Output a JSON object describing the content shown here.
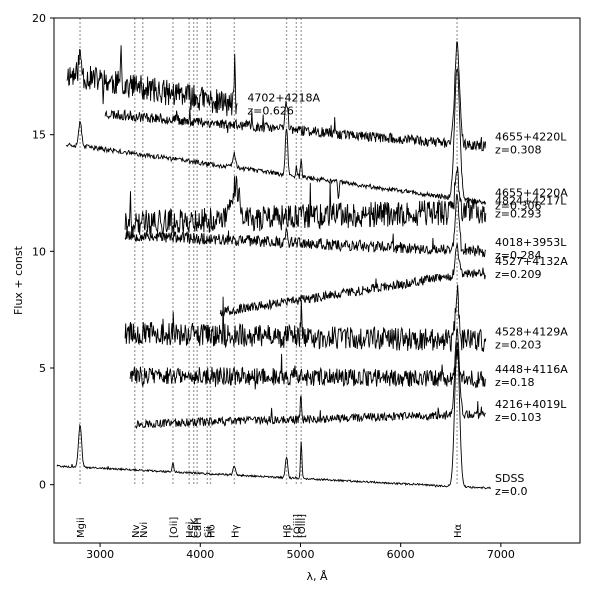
{
  "chart_data": {
    "type": "line",
    "title": "",
    "xlabel": "λ, Å",
    "ylabel": "Flux + const",
    "xlim": [
      2540,
      7790
    ],
    "ylim": [
      -2.5,
      20
    ],
    "x_ticks": [
      3000,
      4000,
      5000,
      6000,
      7000
    ],
    "y_ticks": [
      0,
      5,
      10,
      15,
      20
    ],
    "grid": false,
    "legend": "none",
    "colors": {
      "spectrum": "#000000",
      "line_marker": "#a8a8a8"
    },
    "series": [
      {
        "id": "4702+4218A",
        "name": "4702+4218A",
        "z": "z=0.626",
        "x_range": [
          2670,
          4370
        ],
        "offset": 17.6,
        "slope": -0.0008,
        "noise": 0.55,
        "seed": 11,
        "features": [
          {
            "wl": 2800,
            "amp": 0.9,
            "w": 15
          },
          {
            "wl": 3210,
            "amp": 2.2,
            "w": 4
          },
          {
            "wl": 4345,
            "amp": 2.5,
            "w": 4
          }
        ]
      },
      {
        "id": "4655+4220L",
        "name": "4655+4220L",
        "z": "z=0.308",
        "x_range": [
          3050,
          6850
        ],
        "offset": 15.9,
        "slope": -0.00037,
        "noise": 0.22,
        "seed": 23,
        "features": [
          {
            "wl": 4861,
            "amp": 1.2,
            "w": 14
          },
          {
            "wl": 6563,
            "amp": 4.3,
            "w": 24
          }
        ]
      },
      {
        "id": "4655+4220A",
        "name": "4655+4220A",
        "z": "z=0.306",
        "x_range": [
          2660,
          6850
        ],
        "offset": 14.6,
        "slope": -0.0006,
        "noise": 0.1,
        "seed": 37,
        "features": [
          {
            "wl": 2800,
            "amp": 1.0,
            "w": 15
          },
          {
            "wl": 4340,
            "amp": 0.6,
            "w": 15
          },
          {
            "wl": 4861,
            "amp": 2.0,
            "w": 12
          },
          {
            "wl": 4959,
            "amp": 0.4,
            "w": 6
          },
          {
            "wl": 5007,
            "amp": 0.8,
            "w": 6
          },
          {
            "wl": 5380,
            "amp": -0.8,
            "w": 6
          },
          {
            "wl": 6563,
            "amp": 5.6,
            "w": 26
          }
        ]
      },
      {
        "id": "4824+4217L",
        "name": "4824+4217L",
        "z": "z=0.293",
        "x_range": [
          3250,
          6850
        ],
        "offset": 11.2,
        "slope": 0.00015,
        "noise": 0.55,
        "seed": 41,
        "features": [
          {
            "wl": 4350,
            "amp": 1.5,
            "w": 40
          },
          {
            "wl": 6563,
            "amp": 1.8,
            "w": 20
          }
        ]
      },
      {
        "id": "4018+3953L",
        "name": "4018+3953L",
        "z": "z=0.284",
        "x_range": [
          3250,
          6850
        ],
        "offset": 10.7,
        "slope": -0.0002,
        "noise": 0.25,
        "seed": 53,
        "features": [
          {
            "wl": 4861,
            "amp": 0.8,
            "w": 10
          },
          {
            "wl": 6563,
            "amp": 2.5,
            "w": 18
          }
        ]
      },
      {
        "id": "4527+4132A",
        "name": "4527+4132A",
        "z": "z=0.209",
        "x_range": [
          4200,
          6850
        ],
        "offset": 7.4,
        "slope": 0.00066,
        "noise": 0.2,
        "seed": 67,
        "features": [
          {
            "wl": 6563,
            "amp": 1.2,
            "w": 18
          }
        ]
      },
      {
        "id": "4528+4129A",
        "name": "4528+4129A",
        "z": "z=0.203",
        "x_range": [
          3250,
          6850
        ],
        "offset": 6.5,
        "slope": -0.0001,
        "noise": 0.5,
        "seed": 79,
        "features": [
          {
            "wl": 5007,
            "amp": 1.2,
            "w": 6
          },
          {
            "wl": 6563,
            "amp": 2.2,
            "w": 18
          }
        ]
      },
      {
        "id": "4448+4116A",
        "name": "4448+4116A",
        "z": "z=0.18",
        "x_range": [
          3300,
          6850
        ],
        "offset": 4.7,
        "slope": -5e-05,
        "noise": 0.38,
        "seed": 83,
        "features": [
          {
            "wl": 6563,
            "amp": 0.9,
            "w": 14
          }
        ]
      },
      {
        "id": "4216+4019L",
        "name": "4216+4019L",
        "z": "z=0.103",
        "x_range": [
          3350,
          6850
        ],
        "offset": 2.6,
        "slope": 0.00012,
        "noise": 0.18,
        "seed": 97,
        "features": [
          {
            "wl": 5005,
            "amp": 1.2,
            "w": 6
          },
          {
            "wl": 6563,
            "amp": 3.6,
            "w": 22
          }
        ]
      },
      {
        "id": "SDSS",
        "name": "SDSS",
        "z": "z=0.0",
        "x_range": [
          2570,
          6900
        ],
        "offset": 0.8,
        "slope": -0.00022,
        "noise": 0.04,
        "seed": 101,
        "features": [
          {
            "wl": 2800,
            "amp": 1.8,
            "w": 15
          },
          {
            "wl": 3727,
            "amp": 0.4,
            "w": 8
          },
          {
            "wl": 4340,
            "amp": 0.4,
            "w": 12
          },
          {
            "wl": 4861,
            "amp": 0.9,
            "w": 12
          },
          {
            "wl": 5007,
            "amp": 1.6,
            "w": 7
          },
          {
            "wl": 6563,
            "amp": 6.2,
            "w": 24
          }
        ]
      }
    ],
    "emission_lines": [
      {
        "label": "Mgii",
        "wl": 2800
      },
      {
        "label": "Nv",
        "wl": 3346
      },
      {
        "label": "Nvi",
        "wl": 3426
      },
      {
        "label": "[Oii]",
        "wl": 3727
      },
      {
        "label": "Hei",
        "wl": 3889
      },
      {
        "label": "CaK",
        "wl": 3934
      },
      {
        "label": "CaH",
        "wl": 3969
      },
      {
        "label": "Hδ",
        "wl": 4102
      },
      {
        "label": "Sii",
        "wl": 4070
      },
      {
        "label": "Hγ",
        "wl": 4340
      },
      {
        "label": "Hβ",
        "wl": 4861
      },
      {
        "label": "[Oiii]",
        "wl": 4959
      },
      {
        "label": "[Oiii]",
        "wl": 5007
      },
      {
        "label": "Hα",
        "wl": 6563
      }
    ]
  }
}
